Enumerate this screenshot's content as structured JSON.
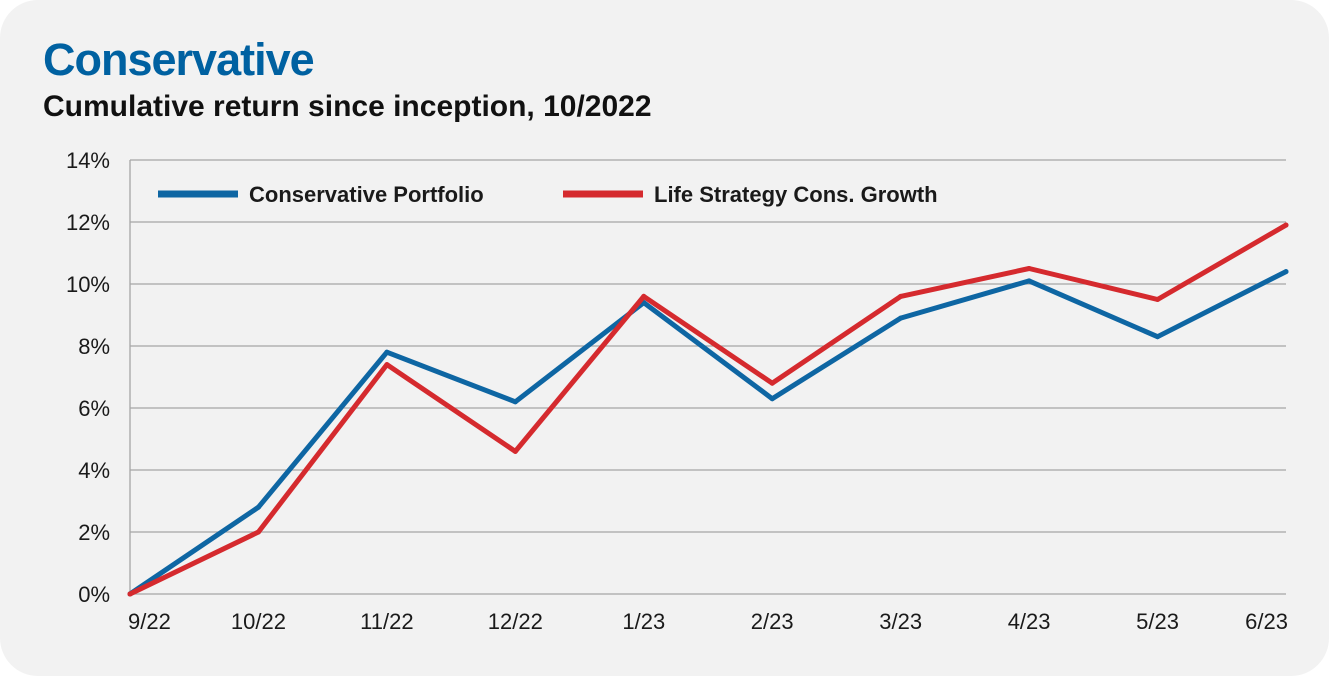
{
  "header": {
    "title": "Conservative",
    "subtitle": "Cumulative return since inception, 10/2022"
  },
  "colors": {
    "title": "#0061a1",
    "conservative_portfolio": "#0e66a3",
    "life_strategy": "#d52a2e",
    "gridline": "#a6a6a6",
    "background": "#f2f2f2"
  },
  "chart_data": {
    "type": "line",
    "title": "Conservative",
    "subtitle": "Cumulative return since inception, 10/2022",
    "xlabel": "",
    "ylabel": "",
    "categories": [
      "9/22",
      "10/22",
      "11/22",
      "12/22",
      "1/23",
      "2/23",
      "3/23",
      "4/23",
      "5/23",
      "6/23"
    ],
    "y_tick_labels": [
      "0%",
      "2%",
      "4%",
      "6%",
      "8%",
      "10%",
      "12%",
      "14%"
    ],
    "ylim": [
      0,
      14
    ],
    "y_unit": "%",
    "grid": true,
    "legend_position": "top-left",
    "series": [
      {
        "name": "Conservative Portfolio",
        "color": "#0e66a3",
        "values": [
          0,
          2.8,
          7.8,
          6.2,
          9.4,
          6.3,
          8.9,
          10.1,
          8.3,
          10.4
        ]
      },
      {
        "name": "Life Strategy Cons. Growth",
        "color": "#d52a2e",
        "values": [
          0,
          2.0,
          7.4,
          4.6,
          9.6,
          6.8,
          9.6,
          10.5,
          9.5,
          11.9
        ]
      }
    ]
  }
}
